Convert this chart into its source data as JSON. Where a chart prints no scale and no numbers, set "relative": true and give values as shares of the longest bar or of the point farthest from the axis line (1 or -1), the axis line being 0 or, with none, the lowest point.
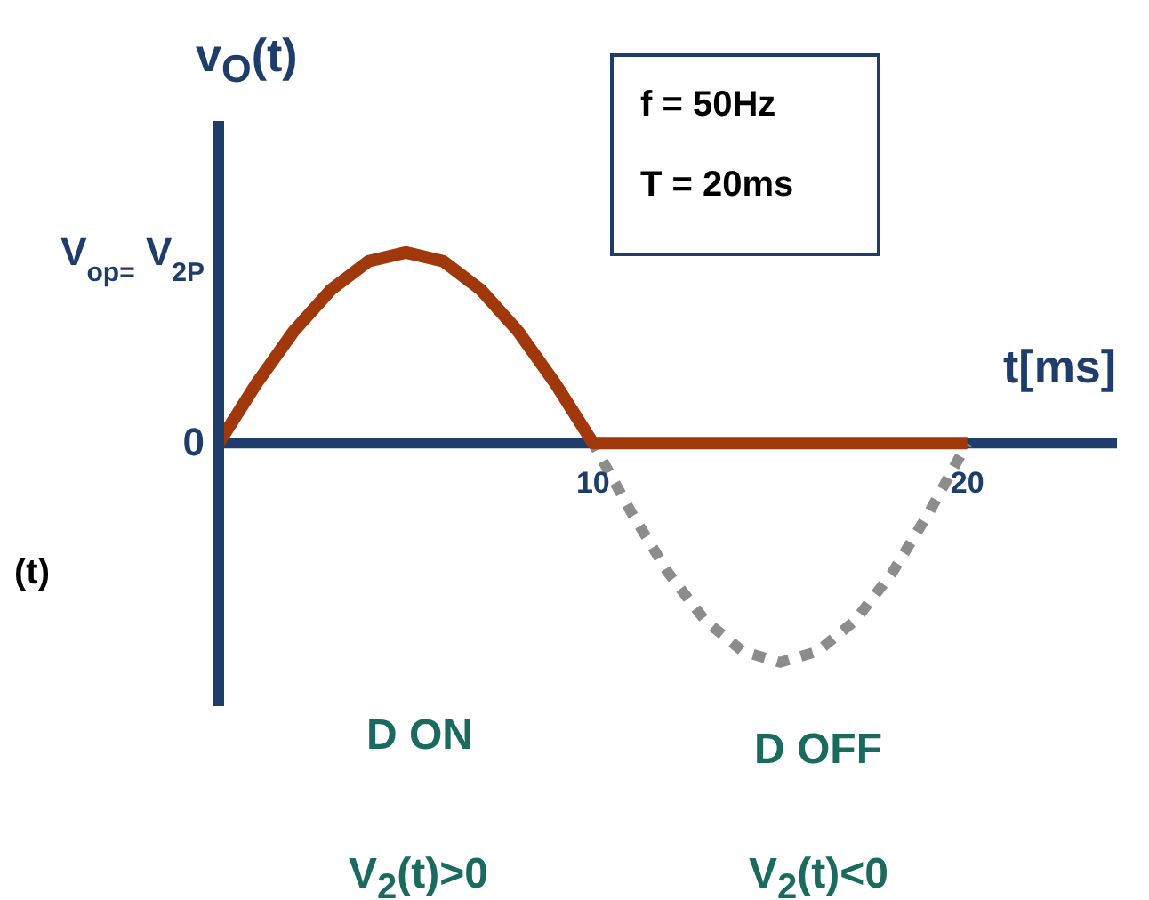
{
  "chart_data": {
    "type": "line",
    "ylabel": "v$_{O}$(t)",
    "xlabel": "t[ms]",
    "x": [
      0,
      1,
      2,
      3,
      4,
      5,
      6,
      7,
      8,
      9,
      10,
      11,
      12,
      13,
      14,
      15,
      16,
      17,
      18,
      19,
      20
    ],
    "relative": true,
    "series": [
      {
        "color": "#8c8c8c",
        "line_style": "dotted",
        "values": [
          0,
          0.27,
          0.51,
          0.7,
          0.83,
          0.87,
          0.83,
          0.7,
          0.51,
          0.27,
          0,
          -0.31,
          -0.59,
          -0.81,
          -0.95,
          -1,
          -0.95,
          -0.81,
          -0.59,
          -0.31,
          0
        ]
      },
      {
        "color": "#a0380c",
        "line_style": "solid",
        "values": [
          0,
          0.27,
          0.51,
          0.7,
          0.83,
          0.87,
          0.83,
          0.7,
          0.51,
          0.27,
          0,
          0,
          0,
          0,
          0,
          0,
          0,
          0,
          0,
          0,
          0
        ]
      }
    ],
    "xlim": [
      0,
      24
    ],
    "xticks": [
      10,
      20
    ],
    "grid": false,
    "legend": false,
    "marker": "none",
    "annotations": [
      "f = 50Hz",
      "T = 20ms",
      "D ON",
      "D OFF",
      "V$_{2}$(t)>0",
      "V$_{2}$(t)<0",
      "(t)",
      "0",
      "V$_{op=}$ V$_{2P}$"
    ]
  }
}
